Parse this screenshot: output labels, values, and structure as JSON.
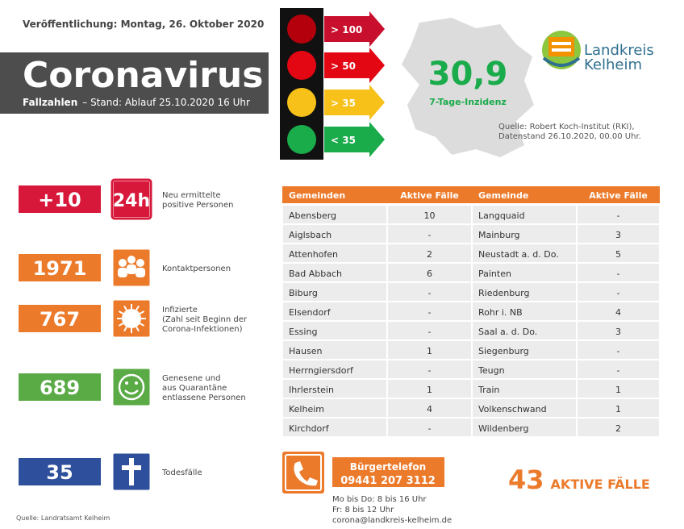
{
  "header": {
    "publication": "Veröffentlichung: Montag, 26. Oktober 2020",
    "title": "Coronavirus",
    "subtitle_bold": "Fallzahlen",
    "subtitle": "– Stand: Ablauf 25.10.2020 16 Uhr"
  },
  "traffic_light": [
    "> 100",
    "> 50",
    "> 35",
    "< 35"
  ],
  "incidence": {
    "value": "30,9",
    "label": "7-Tage-Inzidenz",
    "source": [
      "Quelle: Robert Koch-Institut (RKI),",
      "Datenstand 26.10.2020, 00.00 Uhr."
    ]
  },
  "logo": [
    "Landkreis",
    "Kelheim"
  ],
  "stats": [
    {
      "value": "+10",
      "icon": "24h",
      "label": [
        "Neu ermittelte",
        "positive Personen"
      ]
    },
    {
      "value": 1971,
      "label": [
        "Kontaktpersonen"
      ]
    },
    {
      "value": 767,
      "label": [
        "Infizierte",
        "(Zahl seit Beginn der",
        "Corona-Infektionen)"
      ]
    },
    {
      "value": 689,
      "label": [
        "Genesene und",
        "aus Quarantäne",
        "entlassene Personen"
      ]
    },
    {
      "value": 35,
      "label": [
        "Todesfälle"
      ]
    }
  ],
  "table": {
    "header": [
      "Gemeinden",
      "Aktive Fälle",
      "Gemeinde",
      "Aktive Fälle"
    ],
    "rows": [
      [
        "Abensberg",
        10,
        "Langquaid",
        "-"
      ],
      [
        "Aiglsbach",
        "-",
        "Mainburg",
        3
      ],
      [
        "Attenhofen",
        2,
        "Neustadt a. d. Do.",
        5
      ],
      [
        "Bad Abbach",
        6,
        "Painten",
        "-"
      ],
      [
        "Biburg",
        "-",
        "Riedenburg",
        "-"
      ],
      [
        "Elsendorf",
        "-",
        "Rohr i. NB",
        4
      ],
      [
        "Essing",
        "-",
        "Saal a. d. Do.",
        3
      ],
      [
        "Hausen",
        1,
        "Siegenburg",
        "-"
      ],
      [
        "Herrngiersdorf",
        "-",
        "Teugn",
        "-"
      ],
      [
        "Ihrlerstein",
        1,
        "Train",
        1
      ],
      [
        "Kelheim",
        4,
        "Volkenschwand",
        1
      ],
      [
        "Kirchdorf",
        "-",
        "Wildenberg",
        2
      ]
    ]
  },
  "phone": {
    "title": "Bürgertelefon",
    "number": "09441 207 3112",
    "info": [
      "Mo bis Do: 8 bis 16 Uhr",
      "Fr: 8 bis 12 Uhr",
      "corona@landkreis-kelheim.de"
    ]
  },
  "total": {
    "value": 43,
    "label": "AKTIVE FÄLLE"
  },
  "footer": "Quelle: Landratsamt Kelheim"
}
